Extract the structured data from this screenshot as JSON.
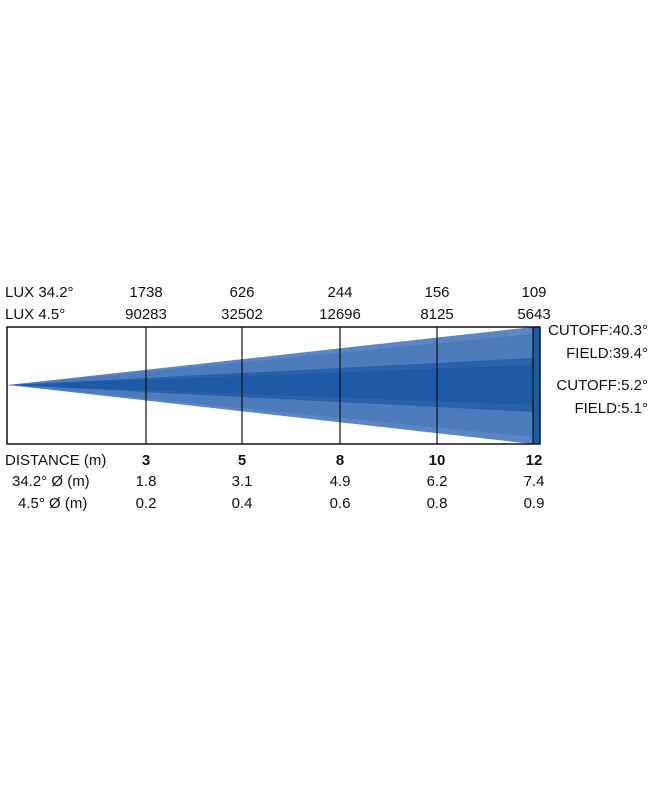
{
  "lux_rows": [
    {
      "label": "LUX  34.2°",
      "values": [
        1738,
        626,
        244,
        156,
        109
      ]
    },
    {
      "label": "LUX  4.5°",
      "values": [
        90283,
        32502,
        12696,
        8125,
        5643
      ]
    }
  ],
  "beam_labels": [
    "CUTOFF:40.3°",
    "FIELD:39.4°",
    "CUTOFF:5.2°",
    "FIELD:5.1°"
  ],
  "distance_rows": [
    {
      "label": "DISTANCE (m)",
      "values": [
        3,
        5,
        8,
        10,
        12
      ]
    },
    {
      "label": "34.2° Ø (m)",
      "values": [
        1.8,
        3.1,
        4.9,
        6.2,
        7.4
      ]
    },
    {
      "label": "4.5° Ø (m)",
      "values": [
        0.2,
        0.4,
        0.6,
        0.8,
        0.9
      ]
    }
  ]
}
